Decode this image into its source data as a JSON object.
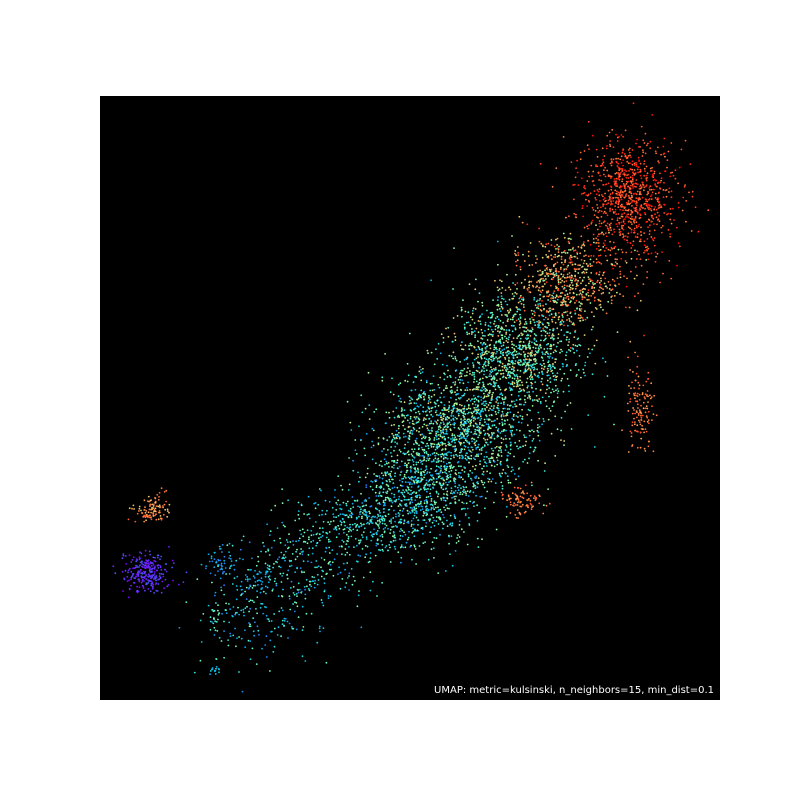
{
  "chart_data": {
    "type": "scatter",
    "title": "",
    "xlabel": "",
    "ylabel": "",
    "annotation": "UMAP: metric=kulsinski, n_neighbors=15, min_dist=0.1",
    "background": "#000000",
    "colormap": "rainbow",
    "grid": false,
    "axes_visible": false,
    "xlim": [
      0,
      100
    ],
    "ylim": [
      0,
      100
    ],
    "approx_points": 9000,
    "clusters": [
      {
        "cx": 85,
        "cy": 83,
        "sx": 4,
        "sy": 5,
        "n": 900,
        "color_lo": 0.82,
        "color_hi": 1.0
      },
      {
        "cx": 75,
        "cy": 69,
        "sx": 4.5,
        "sy": 4,
        "n": 650,
        "color_lo": 0.55,
        "color_hi": 0.95
      },
      {
        "cx": 67,
        "cy": 57,
        "sx": 5,
        "sy": 5,
        "n": 1100,
        "color_lo": 0.25,
        "color_hi": 0.75
      },
      {
        "cx": 58,
        "cy": 45,
        "sx": 6,
        "sy": 5,
        "n": 1300,
        "color_lo": 0.2,
        "color_hi": 0.7
      },
      {
        "cx": 52,
        "cy": 35,
        "sx": 5,
        "sy": 4,
        "n": 700,
        "color_lo": 0.15,
        "color_hi": 0.6
      },
      {
        "cx": 43,
        "cy": 29,
        "sx": 6,
        "sy": 3,
        "n": 420,
        "color_lo": 0.2,
        "color_hi": 0.55
      },
      {
        "cx": 32,
        "cy": 22,
        "sx": 6,
        "sy": 3,
        "n": 260,
        "color_lo": 0.15,
        "color_hi": 0.55
      },
      {
        "cx": 25,
        "cy": 13,
        "sx": 6,
        "sy": 3.5,
        "n": 180,
        "color_lo": 0.15,
        "color_hi": 0.5
      },
      {
        "cx": 68,
        "cy": 33,
        "sx": 1.6,
        "sy": 1.2,
        "n": 90,
        "color_lo": 0.78,
        "color_hi": 0.92
      },
      {
        "cx": 87,
        "cy": 48,
        "sx": 1.3,
        "sy": 4,
        "n": 130,
        "color_lo": 0.75,
        "color_hi": 0.92
      },
      {
        "cx": 8.5,
        "cy": 31.5,
        "sx": 1.4,
        "sy": 1.2,
        "n": 110,
        "color_lo": 0.7,
        "color_hi": 0.9
      },
      {
        "cx": 7.5,
        "cy": 21,
        "sx": 1.8,
        "sy": 1.5,
        "n": 260,
        "color_lo": 0.0,
        "color_hi": 0.12
      },
      {
        "cx": 19,
        "cy": 23,
        "sx": 1.2,
        "sy": 1.2,
        "n": 45,
        "color_lo": 0.15,
        "color_hi": 0.3
      },
      {
        "cx": 18.5,
        "cy": 5,
        "sx": 0.5,
        "sy": 0.6,
        "n": 14,
        "color_lo": 0.2,
        "color_hi": 0.35
      },
      {
        "cx": 18.5,
        "cy": 14,
        "sx": 0.5,
        "sy": 0.8,
        "n": 14,
        "color_lo": 0.35,
        "color_hi": 0.5
      },
      {
        "cx": 26,
        "cy": 20,
        "sx": 1.0,
        "sy": 1.0,
        "n": 35,
        "color_lo": 0.2,
        "color_hi": 0.3
      }
    ]
  }
}
